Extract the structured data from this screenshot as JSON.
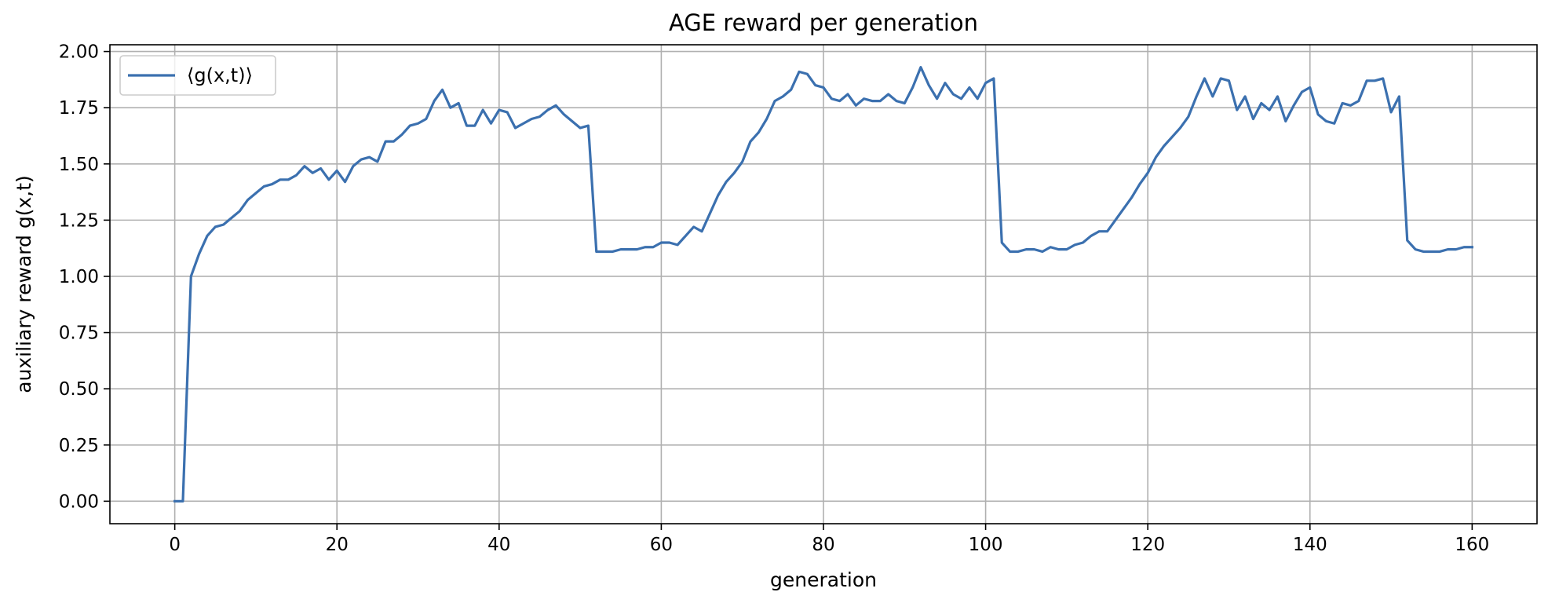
{
  "chart_data": {
    "type": "line",
    "title": "AGE reward per generation",
    "xlabel": "generation",
    "ylabel": "auxiliary reward g(x,t)",
    "xlim": [
      -8,
      168
    ],
    "ylim": [
      -0.1,
      2.03
    ],
    "xticks": [
      0,
      20,
      40,
      60,
      80,
      100,
      120,
      140,
      160
    ],
    "yticks": [
      0.0,
      0.25,
      0.5,
      0.75,
      1.0,
      1.25,
      1.5,
      1.75,
      2.0
    ],
    "xtick_labels": [
      "0",
      "20",
      "40",
      "60",
      "80",
      "100",
      "120",
      "140",
      "160"
    ],
    "ytick_labels": [
      "0.00",
      "0.25",
      "0.50",
      "0.75",
      "1.00",
      "1.25",
      "1.50",
      "1.75",
      "2.00"
    ],
    "grid": true,
    "legend_position": "top-left",
    "series": [
      {
        "name": "⟨g(x,t)⟩",
        "color": "#3b70af",
        "x": [
          0,
          1,
          2,
          3,
          4,
          5,
          6,
          7,
          8,
          9,
          10,
          11,
          12,
          13,
          14,
          15,
          16,
          17,
          18,
          19,
          20,
          21,
          22,
          23,
          24,
          25,
          26,
          27,
          28,
          29,
          30,
          31,
          32,
          33,
          34,
          35,
          36,
          37,
          38,
          39,
          40,
          41,
          42,
          43,
          44,
          45,
          46,
          47,
          48,
          49,
          50,
          51,
          52,
          53,
          54,
          55,
          56,
          57,
          58,
          59,
          60,
          61,
          62,
          63,
          64,
          65,
          66,
          67,
          68,
          69,
          70,
          71,
          72,
          73,
          74,
          75,
          76,
          77,
          78,
          79,
          80,
          81,
          82,
          83,
          84,
          85,
          86,
          87,
          88,
          89,
          90,
          91,
          92,
          93,
          94,
          95,
          96,
          97,
          98,
          99,
          100,
          101,
          102,
          103,
          104,
          105,
          106,
          107,
          108,
          109,
          110,
          111,
          112,
          113,
          114,
          115,
          116,
          117,
          118,
          119,
          120,
          121,
          122,
          123,
          124,
          125,
          126,
          127,
          128,
          129,
          130,
          131,
          132,
          133,
          134,
          135,
          136,
          137,
          138,
          139,
          140,
          141,
          142,
          143,
          144,
          145,
          146,
          147,
          148,
          149,
          150,
          151,
          152,
          153,
          154,
          155,
          156,
          157,
          158,
          159,
          160
        ],
        "values": [
          0.0,
          0.0,
          1.0,
          1.1,
          1.18,
          1.22,
          1.23,
          1.26,
          1.29,
          1.34,
          1.37,
          1.4,
          1.41,
          1.43,
          1.43,
          1.45,
          1.49,
          1.46,
          1.48,
          1.43,
          1.47,
          1.42,
          1.49,
          1.52,
          1.53,
          1.51,
          1.6,
          1.6,
          1.63,
          1.67,
          1.68,
          1.7,
          1.78,
          1.83,
          1.75,
          1.77,
          1.67,
          1.67,
          1.74,
          1.68,
          1.74,
          1.73,
          1.66,
          1.68,
          1.7,
          1.71,
          1.74,
          1.76,
          1.72,
          1.69,
          1.66,
          1.67,
          1.11,
          1.11,
          1.11,
          1.12,
          1.12,
          1.12,
          1.13,
          1.13,
          1.15,
          1.15,
          1.14,
          1.18,
          1.22,
          1.2,
          1.28,
          1.36,
          1.42,
          1.46,
          1.51,
          1.6,
          1.64,
          1.7,
          1.78,
          1.8,
          1.83,
          1.91,
          1.9,
          1.85,
          1.84,
          1.79,
          1.78,
          1.81,
          1.76,
          1.79,
          1.78,
          1.78,
          1.81,
          1.78,
          1.77,
          1.84,
          1.93,
          1.85,
          1.79,
          1.86,
          1.81,
          1.79,
          1.84,
          1.79,
          1.86,
          1.88,
          1.15,
          1.11,
          1.11,
          1.12,
          1.12,
          1.11,
          1.13,
          1.12,
          1.12,
          1.14,
          1.15,
          1.18,
          1.2,
          1.2,
          1.25,
          1.3,
          1.35,
          1.41,
          1.46,
          1.53,
          1.58,
          1.62,
          1.66,
          1.71,
          1.8,
          1.88,
          1.8,
          1.88,
          1.87,
          1.74,
          1.8,
          1.7,
          1.77,
          1.74,
          1.8,
          1.69,
          1.76,
          1.82,
          1.84,
          1.72,
          1.69,
          1.68,
          1.77,
          1.76,
          1.78,
          1.87,
          1.87,
          1.88,
          1.73,
          1.8,
          1.16,
          1.12,
          1.11,
          1.11,
          1.11,
          1.12,
          1.12,
          1.13,
          1.13
        ]
      }
    ]
  }
}
